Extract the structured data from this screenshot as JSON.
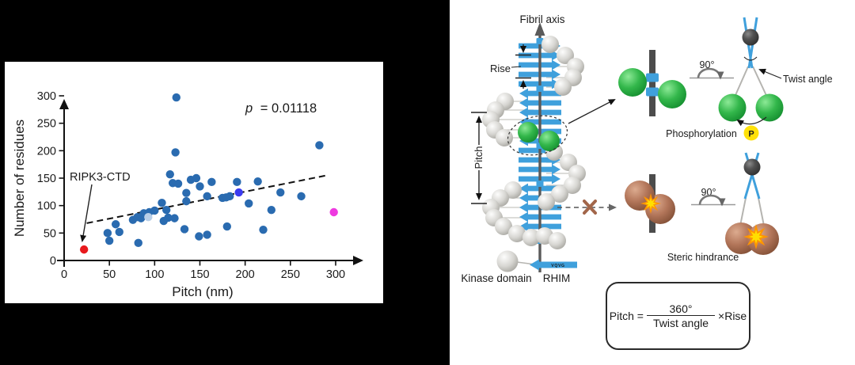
{
  "colors": {
    "background": "#000000",
    "panel": "#ffffff",
    "dot_blue": "#2a6bb0",
    "dot_red": "#e8191d",
    "dot_light_blue": "#b9cfe8",
    "dot_violet": "#3b3bf0",
    "dot_magenta": "#ee3ae0",
    "strand_blue": "#3fa0dc",
    "sphere_gray": "#d2d1cd",
    "sphere_green": "#2fb348",
    "sphere_brown": "#b3765a",
    "phospho_yellow": "#ffe10a",
    "clash_orange": "#ff9500"
  },
  "scatter": {
    "p_italic": "p",
    "p_rest": "= 0.01118",
    "annotation_label": "RIPK3-CTD"
  },
  "chart_data": {
    "type": "scatter",
    "title": "",
    "xlabel": "Pitch (nm)",
    "ylabel": "Number of residues",
    "xlim": [
      0,
      330
    ],
    "ylim": [
      0,
      320
    ],
    "x_ticks": [
      0,
      50,
      100,
      150,
      200,
      250,
      300
    ],
    "y_ticks": [
      0,
      50,
      100,
      150,
      200,
      250,
      300
    ],
    "grid": false,
    "annotations": [
      {
        "text": "p = 0.01118",
        "position": "top-right"
      },
      {
        "text": "RIPK3-CTD",
        "points_to": [
          22,
          20
        ]
      }
    ],
    "trend_line": {
      "style": "dashed",
      "from": [
        25,
        68
      ],
      "to": [
        290,
        155
      ]
    },
    "series": [
      {
        "name": "amyloid-fibrils",
        "color": "#2a6bb0",
        "points": [
          [
            48,
            50
          ],
          [
            50,
            36
          ],
          [
            57,
            66
          ],
          [
            61,
            52
          ],
          [
            76,
            74
          ],
          [
            81,
            79
          ],
          [
            85,
            77
          ],
          [
            88,
            86
          ],
          [
            82,
            32
          ],
          [
            94,
            88
          ],
          [
            100,
            91
          ],
          [
            108,
            105
          ],
          [
            110,
            72
          ],
          [
            113,
            92
          ],
          [
            115,
            78
          ],
          [
            122,
            77
          ],
          [
            117,
            157
          ],
          [
            120,
            141
          ],
          [
            126,
            140
          ],
          [
            124,
            297
          ],
          [
            123,
            197
          ],
          [
            133,
            57
          ],
          [
            135,
            108
          ],
          [
            135,
            123
          ],
          [
            140,
            147
          ],
          [
            146,
            150
          ],
          [
            150,
            135
          ],
          [
            149,
            44
          ],
          [
            158,
            47
          ],
          [
            158,
            117
          ],
          [
            163,
            143
          ],
          [
            175,
            114
          ],
          [
            179,
            115
          ],
          [
            183,
            117
          ],
          [
            180,
            62
          ],
          [
            191,
            143
          ],
          [
            204,
            104
          ],
          [
            214,
            144
          ],
          [
            220,
            56
          ],
          [
            229,
            92
          ],
          [
            239,
            124
          ],
          [
            262,
            117
          ],
          [
            282,
            210
          ]
        ]
      },
      {
        "name": "highlight-light-blue",
        "color": "#b9cfe8",
        "points": [
          [
            93,
            79
          ]
        ]
      },
      {
        "name": "highlight-violet",
        "color": "#3b3bf0",
        "points": [
          [
            193,
            124
          ]
        ]
      },
      {
        "name": "highlight-magenta",
        "color": "#ee3ae0",
        "points": [
          [
            298,
            88
          ]
        ]
      },
      {
        "name": "RIPK3-CTD",
        "color": "#e8191d",
        "points": [
          [
            22,
            20
          ]
        ]
      }
    ]
  },
  "diagram": {
    "fibril_axis_label": "Fibril axis",
    "rise_label": "Rise",
    "pitch_label": "Pitch",
    "kinase_domain_label": "Kinase domain",
    "rhim_label": "RHIM",
    "rhim_motif": "VQVG",
    "rotation_top_label": "90°",
    "rotation_bottom_label": "90°",
    "twist_angle_label": "Twist angle",
    "phosphorylation_label": "Phosphorylation",
    "phospho_symbol": "P",
    "steric_label": "Steric hindrance",
    "formula": {
      "lhs": "Pitch =",
      "numerator": "360°",
      "denominator": "Twist angle",
      "multiplier": "×Rise"
    }
  }
}
